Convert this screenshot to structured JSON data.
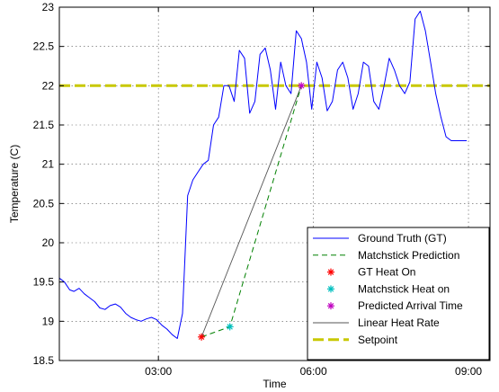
{
  "chart_data": {
    "type": "line",
    "xlabel": "Time",
    "ylabel": "Temperature (C)",
    "xlim": [
      "01:05",
      "09:25"
    ],
    "ylim": [
      18.5,
      23
    ],
    "grid": true,
    "legend_position": "bottom-right",
    "x_ticks": [
      "03:00",
      "06:00",
      "09:00"
    ],
    "y_ticks": [
      18.5,
      19,
      19.5,
      20,
      20.5,
      21,
      21.5,
      22,
      22.5,
      23
    ],
    "series": [
      {
        "name": "Ground Truth (GT)",
        "style": "line",
        "color": "#0000ff",
        "x": [
          "01:05",
          "01:11",
          "01:17",
          "01:22",
          "01:28",
          "01:34",
          "01:40",
          "01:46",
          "01:52",
          "01:58",
          "02:04",
          "02:10",
          "02:16",
          "02:22",
          "02:28",
          "02:34",
          "02:40",
          "02:46",
          "02:52",
          "02:58",
          "03:04",
          "03:10",
          "03:16",
          "03:22",
          "03:28",
          "03:34",
          "03:40",
          "03:46",
          "03:52",
          "03:58",
          "04:04",
          "04:10",
          "04:16",
          "04:22",
          "04:28",
          "04:34",
          "04:40",
          "04:46",
          "04:52",
          "04:58",
          "05:04",
          "05:10",
          "05:16",
          "05:22",
          "05:28",
          "05:34",
          "05:40",
          "05:46",
          "05:52",
          "05:58",
          "06:04",
          "06:10",
          "06:16",
          "06:22",
          "06:28",
          "06:34",
          "06:40",
          "06:46",
          "06:52",
          "06:58",
          "07:04",
          "07:10",
          "07:16",
          "07:22",
          "07:28",
          "07:34",
          "07:40",
          "07:46",
          "07:52",
          "07:58",
          "08:04",
          "08:10",
          "08:16",
          "08:22",
          "08:28",
          "08:34",
          "08:40",
          "08:46",
          "08:52",
          "08:58"
        ],
        "y": [
          19.55,
          19.5,
          19.4,
          19.38,
          19.42,
          19.35,
          19.3,
          19.25,
          19.17,
          19.15,
          19.2,
          19.22,
          19.18,
          19.1,
          19.05,
          19.02,
          19.0,
          19.03,
          19.05,
          19.02,
          18.95,
          18.9,
          18.83,
          18.78,
          19.1,
          20.6,
          20.8,
          20.9,
          21.0,
          21.05,
          21.5,
          21.6,
          22.0,
          22.0,
          21.8,
          22.45,
          22.35,
          21.65,
          21.8,
          22.4,
          22.48,
          22.2,
          21.7,
          22.3,
          22.0,
          21.9,
          22.7,
          22.6,
          22.3,
          21.7,
          22.3,
          22.1,
          21.68,
          21.8,
          22.2,
          22.3,
          22.1,
          21.7,
          21.9,
          22.3,
          22.25,
          21.8,
          21.7,
          22.0,
          22.35,
          22.2,
          22.0,
          21.9,
          22.05,
          22.85,
          22.95,
          22.7,
          22.3,
          21.9,
          21.6,
          21.35,
          21.3,
          21.3,
          21.3,
          21.3
        ]
      },
      {
        "name": "Matchstick Prediction",
        "style": "dashed",
        "color": "#008000",
        "x": [
          "03:50",
          "04:23",
          "05:46"
        ],
        "y": [
          18.8,
          18.93,
          22.0
        ]
      },
      {
        "name": "GT Heat On",
        "style": "marker",
        "color": "#ff0000",
        "x": [
          "03:50"
        ],
        "y": [
          18.8
        ]
      },
      {
        "name": "Matchstick Heat on",
        "style": "marker",
        "color": "#00bfbf",
        "x": [
          "04:23"
        ],
        "y": [
          18.93
        ]
      },
      {
        "name": "Predicted Arrival Time",
        "style": "marker",
        "color": "#bf00bf",
        "x": [
          "05:46"
        ],
        "y": [
          22.0
        ]
      },
      {
        "name": "Linear Heat Rate",
        "style": "line",
        "color": "#555555",
        "x": [
          "03:50",
          "05:46"
        ],
        "y": [
          18.8,
          22.0
        ]
      },
      {
        "name": "Setpoint",
        "style": "thickdash",
        "color": "#c8c800",
        "x": [
          "01:05",
          "09:25"
        ],
        "y": [
          22.0,
          22.0
        ]
      }
    ]
  }
}
